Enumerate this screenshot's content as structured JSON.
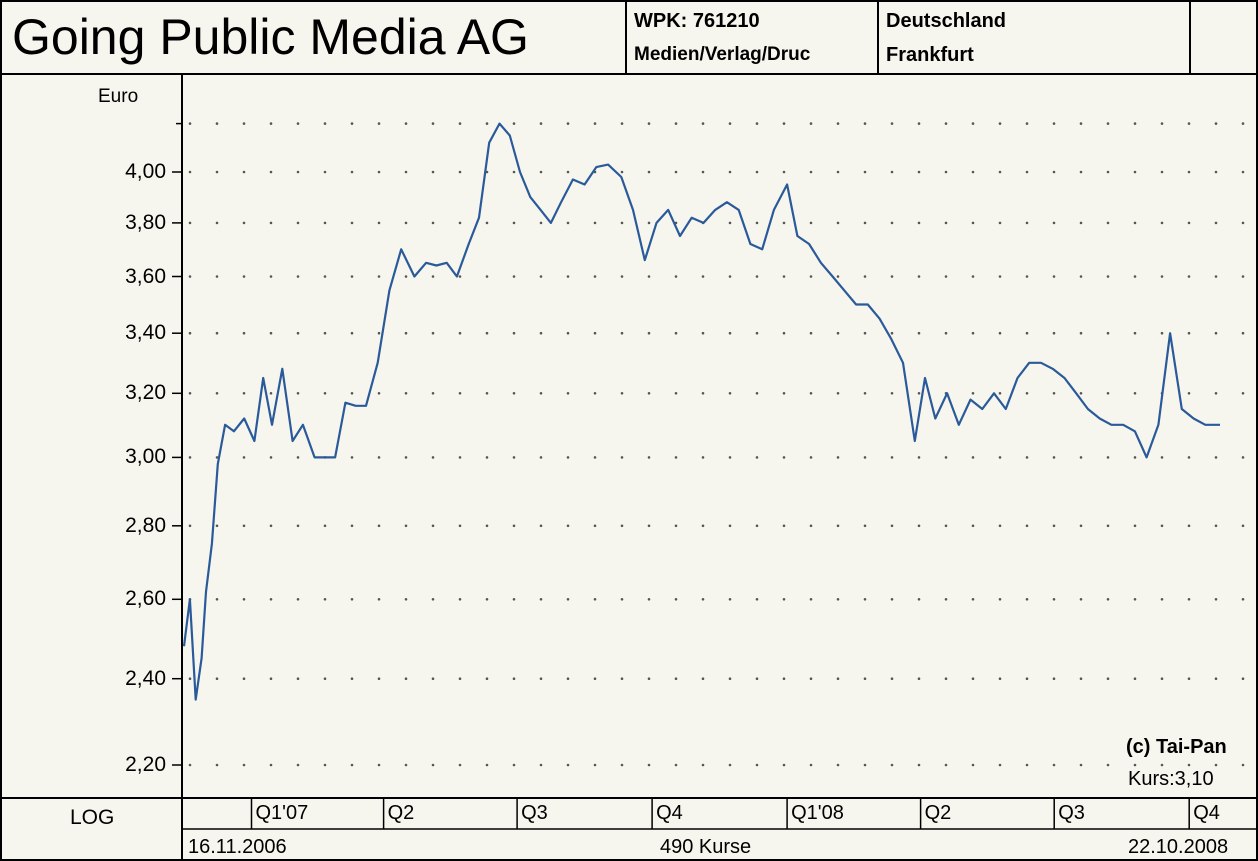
{
  "header": {
    "title": "Going Public Media AG",
    "wpk": "WPK: 761210",
    "sector": "Medien/Verlag/Druc",
    "country": "Deutschland",
    "exchange": "Frankfurt"
  },
  "colors": {
    "line": "#2a5a9a",
    "background": "#f7f6ee",
    "grid": "#555555"
  },
  "footer": {
    "scale_label": "LOG",
    "start_date": "16.11.2006",
    "count": "490 Kurse",
    "end_date": "22.10.2008",
    "quarters": [
      "Q1'07",
      "Q2",
      "Q3",
      "Q4",
      "Q1'08",
      "Q2",
      "Q3",
      "Q4"
    ]
  },
  "annotations": {
    "copyright": "(c) Tai-Pan",
    "last_price": "Kurs:3,10"
  },
  "chart_data": {
    "type": "line",
    "title": "Going Public Media AG",
    "ylabel": "Euro",
    "yscale": "log",
    "ylim": [
      2.15,
      4.4
    ],
    "xlim": [
      "2006-11-16",
      "2008-10-22"
    ],
    "yticks": [
      2.2,
      2.4,
      2.6,
      2.8,
      3.0,
      3.2,
      3.4,
      3.6,
      3.8,
      4.0
    ],
    "ytick_labels": [
      "2,20",
      "2,40",
      "2,60",
      "2,80",
      "3,00",
      "3,20",
      "3,40",
      "3,60",
      "3,80",
      "4,00"
    ],
    "grid": true,
    "series": [
      {
        "x": [
          "2006-11-16",
          "2006-11-20",
          "2006-11-24",
          "2006-11-28",
          "2006-12-01",
          "2006-12-05",
          "2006-12-09",
          "2006-12-14",
          "2006-12-20",
          "2006-12-27",
          "2007-01-03",
          "2007-01-09",
          "2007-01-15",
          "2007-01-22",
          "2007-01-29",
          "2007-02-05",
          "2007-02-13",
          "2007-02-20",
          "2007-02-27",
          "2007-03-06",
          "2007-03-13",
          "2007-03-20",
          "2007-03-28",
          "2007-04-05",
          "2007-04-13",
          "2007-04-22",
          "2007-04-30",
          "2007-05-07",
          "2007-05-14",
          "2007-05-21",
          "2007-05-29",
          "2007-06-05",
          "2007-06-12",
          "2007-06-19",
          "2007-06-26",
          "2007-07-03",
          "2007-07-10",
          "2007-07-17",
          "2007-07-24",
          "2007-07-31",
          "2007-08-08",
          "2007-08-16",
          "2007-08-24",
          "2007-09-01",
          "2007-09-10",
          "2007-09-18",
          "2007-09-26",
          "2007-10-04",
          "2007-10-12",
          "2007-10-20",
          "2007-10-28",
          "2007-11-05",
          "2007-11-13",
          "2007-11-21",
          "2007-11-29",
          "2007-12-07",
          "2007-12-15",
          "2007-12-23",
          "2008-01-01",
          "2008-01-08",
          "2008-01-16",
          "2008-01-24",
          "2008-02-01",
          "2008-02-09",
          "2008-02-17",
          "2008-02-25",
          "2008-03-04",
          "2008-03-12",
          "2008-03-20",
          "2008-03-28",
          "2008-04-04",
          "2008-04-11",
          "2008-04-19",
          "2008-04-27",
          "2008-05-05",
          "2008-05-13",
          "2008-05-21",
          "2008-05-29",
          "2008-06-06",
          "2008-06-14",
          "2008-06-22",
          "2008-06-30",
          "2008-07-08",
          "2008-07-16",
          "2008-07-24",
          "2008-08-01",
          "2008-08-09",
          "2008-08-17",
          "2008-08-25",
          "2008-09-02",
          "2008-09-10",
          "2008-09-18",
          "2008-09-26",
          "2008-10-04",
          "2008-10-12",
          "2008-10-22"
        ],
        "y": [
          2.48,
          2.6,
          2.35,
          2.45,
          2.62,
          2.75,
          2.98,
          3.1,
          3.08,
          3.12,
          3.05,
          3.25,
          3.1,
          3.28,
          3.05,
          3.1,
          3.0,
          3.0,
          3.0,
          3.17,
          3.16,
          3.16,
          3.3,
          3.55,
          3.7,
          3.6,
          3.65,
          3.64,
          3.65,
          3.6,
          3.72,
          3.82,
          4.12,
          4.2,
          4.15,
          4.0,
          3.9,
          3.85,
          3.8,
          3.88,
          3.97,
          3.95,
          4.02,
          4.03,
          3.98,
          3.85,
          3.66,
          3.8,
          3.85,
          3.75,
          3.82,
          3.8,
          3.85,
          3.88,
          3.85,
          3.72,
          3.7,
          3.85,
          3.95,
          3.75,
          3.72,
          3.65,
          3.6,
          3.55,
          3.5,
          3.5,
          3.45,
          3.38,
          3.3,
          3.05,
          3.25,
          3.12,
          3.2,
          3.1,
          3.18,
          3.15,
          3.2,
          3.15,
          3.25,
          3.3,
          3.3,
          3.28,
          3.25,
          3.2,
          3.15,
          3.12,
          3.1,
          3.1,
          3.08,
          3.0,
          3.1,
          3.4,
          3.15,
          3.12,
          3.1,
          3.1
        ]
      }
    ]
  }
}
